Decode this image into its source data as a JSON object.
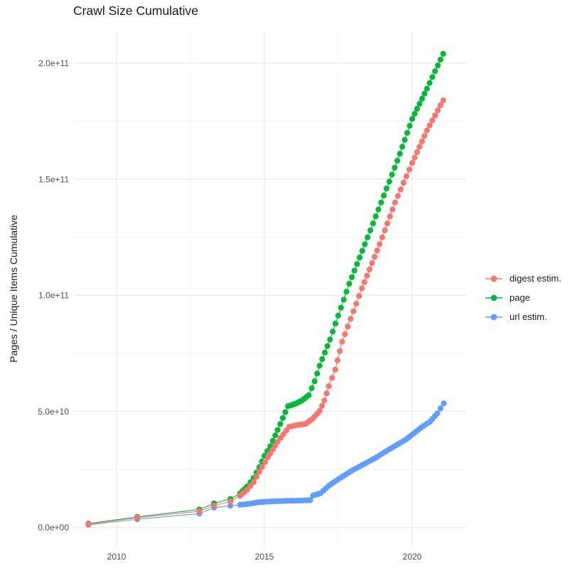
{
  "title": "Crawl Size Cumulative",
  "axes": {
    "y_title": "Pages / Unique Items Cumulative",
    "y_ticks": [
      "0.0e+00",
      "5.0e+10",
      "1.0e+11",
      "1.5e+11",
      "2.0e+11"
    ],
    "y_tick_values_e9": [
      0,
      50,
      100,
      150,
      200
    ],
    "y_minor_e9": [
      25,
      75,
      125,
      175
    ],
    "x_ticks": [
      "2010",
      "2015",
      "2020"
    ],
    "x_tick_values": [
      2010,
      2015,
      2020
    ],
    "x_minor": [
      2012.5,
      2017.5
    ],
    "grid": "on",
    "major_grid_color": "#e9e9e9",
    "minor_grid_color": "#f2f2f2",
    "tick_label_color": "#4d4d4d"
  },
  "legend": {
    "position": "right",
    "entries": [
      {
        "label": "digest estim.",
        "color": "#F8766D"
      },
      {
        "label": "page",
        "color": "#00BA38"
      },
      {
        "label": "url estim.",
        "color": "#619CFF"
      }
    ]
  },
  "chart_data": {
    "type": "line",
    "title": "Crawl Size Cumulative",
    "xlabel": "",
    "ylabel": "Pages / Unique Items Cumulative",
    "xlim": [
      2008.6,
      2021.83
    ],
    "ylim_e9": [
      -8.5,
      213.5
    ],
    "y_unit_multiplier": 1000000000.0,
    "legend_position": "right",
    "series": [
      {
        "name": "digest estim.",
        "color": "#F8766D",
        "points_year_billions": [
          [
            2009.05,
            1.5
          ],
          [
            2010.7,
            4.3
          ],
          [
            2012.8,
            7.0
          ],
          [
            2013.3,
            9.5
          ],
          [
            2013.85,
            11.2
          ],
          [
            2014.18,
            13.7
          ],
          [
            2014.42,
            16.3
          ],
          [
            2014.64,
            19.6
          ],
          [
            2014.83,
            24.0
          ],
          [
            2015.12,
            30.3
          ],
          [
            2015.45,
            37.0
          ],
          [
            2015.84,
            43.4
          ],
          [
            2016.15,
            44.2
          ],
          [
            2016.4,
            44.7
          ],
          [
            2016.63,
            46.8
          ],
          [
            2016.87,
            50.2
          ],
          [
            2017.03,
            54.7
          ],
          [
            2017.18,
            60.9
          ],
          [
            2017.4,
            68.0
          ],
          [
            2017.63,
            80.0
          ],
          [
            2018.3,
            103.0
          ],
          [
            2018.9,
            122.0
          ],
          [
            2019.42,
            140.0
          ],
          [
            2020.0,
            157.0
          ],
          [
            2020.5,
            171.0
          ],
          [
            2021.05,
            184.0
          ]
        ]
      },
      {
        "name": "page",
        "color": "#00BA38",
        "points_year_billions": [
          [
            2009.05,
            1.7
          ],
          [
            2010.7,
            4.6
          ],
          [
            2012.8,
            7.8
          ],
          [
            2013.3,
            10.4
          ],
          [
            2013.85,
            12.3
          ],
          [
            2014.18,
            14.7
          ],
          [
            2014.42,
            17.7
          ],
          [
            2014.64,
            21.4
          ],
          [
            2014.83,
            26.0
          ],
          [
            2015.0,
            30.9
          ],
          [
            2015.2,
            35.0
          ],
          [
            2015.45,
            42.0
          ],
          [
            2015.8,
            52.3
          ],
          [
            2016.03,
            53.2
          ],
          [
            2016.27,
            54.7
          ],
          [
            2016.5,
            57.0
          ],
          [
            2016.7,
            63.0
          ],
          [
            2016.87,
            69.7
          ],
          [
            2017.22,
            81.0
          ],
          [
            2017.87,
            105.0
          ],
          [
            2018.4,
            122.0
          ],
          [
            2018.95,
            140.0
          ],
          [
            2019.5,
            158.0
          ],
          [
            2020.0,
            176.0
          ],
          [
            2020.5,
            189.0
          ],
          [
            2021.05,
            204.0
          ]
        ]
      },
      {
        "name": "url estim.",
        "color": "#619CFF",
        "points_year_billions": [
          [
            2009.05,
            1.2
          ],
          [
            2010.7,
            3.6
          ],
          [
            2012.8,
            6.0
          ],
          [
            2013.3,
            8.6
          ],
          [
            2013.85,
            9.4
          ],
          [
            2014.18,
            9.8
          ],
          [
            2014.42,
            10.1
          ],
          [
            2014.8,
            10.9
          ],
          [
            2015.3,
            11.3
          ],
          [
            2015.8,
            11.5
          ],
          [
            2016.2,
            11.6
          ],
          [
            2016.55,
            11.8
          ],
          [
            2016.65,
            13.8
          ],
          [
            2016.9,
            14.8
          ],
          [
            2017.18,
            18.0
          ],
          [
            2017.5,
            20.8
          ],
          [
            2018.0,
            24.8
          ],
          [
            2018.4,
            27.5
          ],
          [
            2018.8,
            30.3
          ],
          [
            2019.2,
            33.5
          ],
          [
            2019.8,
            38.0
          ],
          [
            2020.3,
            43.0
          ],
          [
            2020.6,
            45.6
          ],
          [
            2020.85,
            49.2
          ],
          [
            2021.07,
            53.5
          ]
        ]
      }
    ]
  }
}
